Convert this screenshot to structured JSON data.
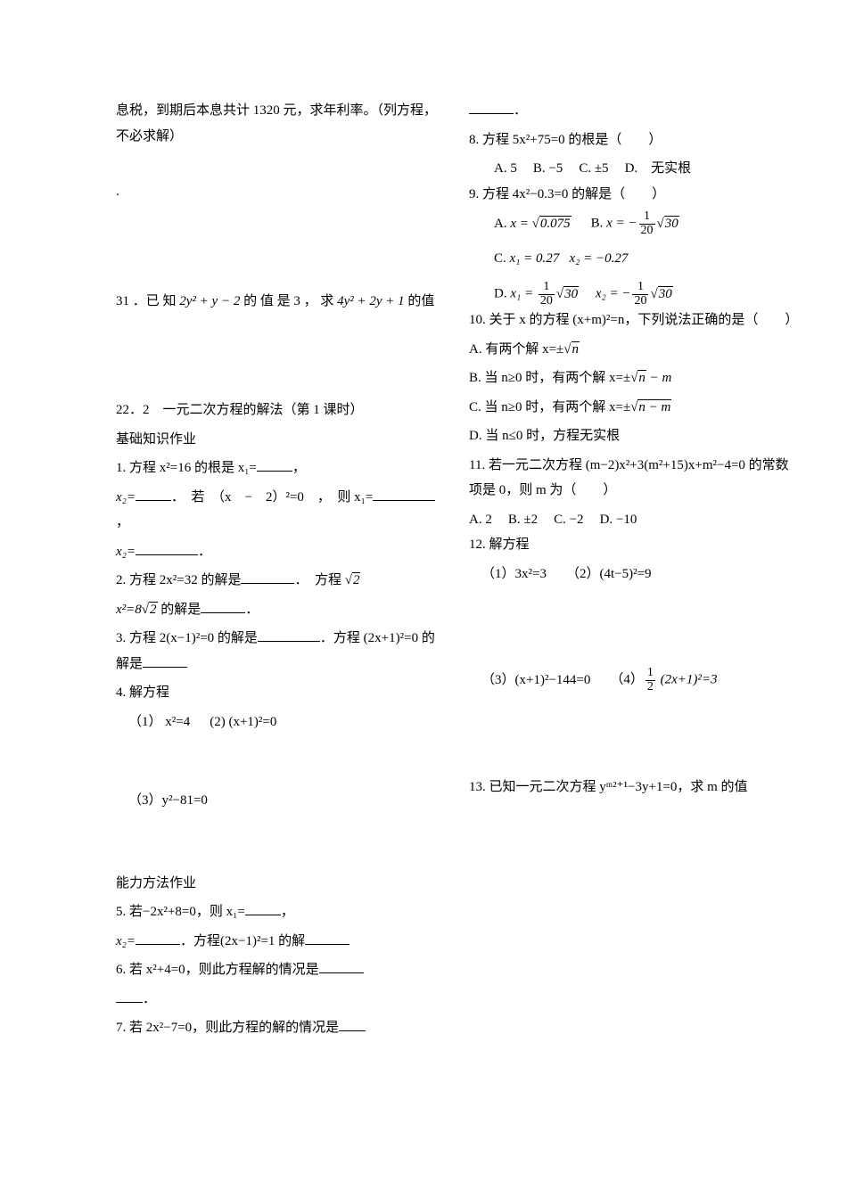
{
  "left": {
    "p1": "息税，到期后本息共计 1320 元，求年利率。（列方程，不必求解）",
    "dot": ".",
    "q31_a": "31 ．已 知 ",
    "q31_b": "2y² + y − 2",
    "q31_c": " 的 值 是 3 ， 求 ",
    "q31_d": "4y² + 2y + 1",
    "q31_e": " 的值",
    "sec_title": "22．2　一元二次方程的解法（第 1 课时）",
    "sec_sub": "基础知识作业",
    "q1a": "1. 方程 x²=16 的根是 x₁=",
    "q1a2": "，",
    "q1b": "x₂=",
    "q1b2": "．　若　（x　−　2）²=0　，　则 x₁=",
    "q1b3": "，",
    "q1c": "x₂=",
    "q1c2": "．",
    "q2a": "2. 方程 2x²=32 的解是",
    "q2a2": "．　方程 ",
    "q2b": " x²=8",
    "q2b2": " 的解是",
    "q2b3": "．",
    "q3a": "3. 方程 2(x−1)²=0 的解是",
    "q3a2": "．方程 (2x+1)²=0 的解是",
    "q4": "4. 解方程",
    "q4_1": "（1） x²=4",
    "q4_2": "(2) (x+1)²=0",
    "q4_3": "（3）y²−81=0",
    "ability": "能力方法作业",
    "q5a": "5. 若−2x²+8=0，则 x₁=",
    "q5a2": "，",
    "q5b": "x₂=",
    "q5b2": "．方程(2x−1)²=1 的解",
    "q6a": "6. 若 x²+4=0，则此方程解的情况是",
    "q6b": "．",
    "q7a": "7. 若 2x²−7=0，则此方程的解的情况是"
  },
  "right": {
    "q7b": "．",
    "q8": "8. 方程 5x²+75=0 的根是（　　）",
    "q8A": "A. 5",
    "q8B": "B. −5",
    "q8C": "C. ±5",
    "q8D": "D.　无实根",
    "q9": "9. 方程 4x²−0.3=0 的解是（　　）",
    "q9A_pre": "A. ",
    "q9A_eq": "x = ",
    "q9A_rad": "0.075",
    "q9B_pre": "B. ",
    "q9B_eq": "x = −",
    "q9B_rad": "30",
    "q9C_pre": "C. ",
    "q9C_1": "x₁ = 0.27",
    "q9C_2": "x₂ = −0.27",
    "q9D_pre": "D. ",
    "q9D_1a": "x₁ = ",
    "q9D_1rad": "30",
    "q9D_2a": "x₂ = −",
    "q9D_2rad": "30",
    "q10": "10. 关于 x 的方程 (x+m)²=n，下列说法正确的是（　　）",
    "q10A_a": "A. 有两个解 x=±",
    "q10A_rad": "n",
    "q10B_a": "B. 当 n≥0 时，有两个解 x=±",
    "q10B_rad": "n",
    "q10B_b": " − m",
    "q10C_a": "C. 当 n≥0 时，有两个解 x=±",
    "q10C_rad": "n − m",
    "q10D": "D. 当 n≤0 时，方程无实根",
    "q11a": "11. 若一元二次方程 (m−2)x²+3(m²+15)x+m²−4=0 的常数项是 0，则 m 为（　　）",
    "q11A": "A. 2",
    "q11B": "B. ±2",
    "q11C": "C. −2",
    "q11D": "D. −10",
    "q12": "12. 解方程",
    "q12_1": "（1）3x²=3",
    "q12_2": "（2）(4t−5)²=9",
    "q12_3": "（3）(x+1)²−144=0",
    "q12_4a": "（4）",
    "q12_4b": " (2x+1)²=3",
    "q13": "13. 已知一元二次方程 yᵐ²⁺¹−3y+1=0，求 m 的值"
  },
  "frac": {
    "one": "1",
    "two": "2",
    "twenty": "20"
  }
}
